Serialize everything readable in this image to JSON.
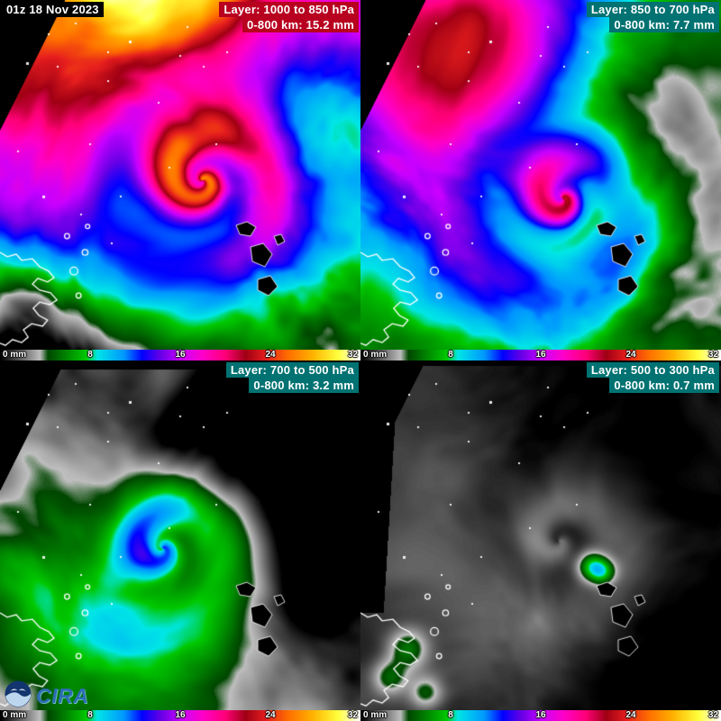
{
  "timestamp": "01z 18 Nov 2023",
  "panels": [
    {
      "layer_label": "Layer: 1000 to 850 hPa",
      "value_label": "0-800 km: 15.2 mm",
      "label_bg": "#b8001f"
    },
    {
      "layer_label": "Layer: 850 to 700 hPa",
      "value_label": "0-800 km: 7.7 mm",
      "label_bg": "#007272"
    },
    {
      "layer_label": "Layer: 700 to 500 hPa",
      "value_label": "0-800 km: 3.2 mm",
      "label_bg": "#007272"
    },
    {
      "layer_label": "Layer: 500 to 300 hPa",
      "value_label": "0-800 km: 0.7 mm",
      "label_bg": "#007272"
    }
  ],
  "colorbar": {
    "unit": "mm",
    "min": 0,
    "max": 32,
    "labels": [
      "0 mm",
      "8",
      "16",
      "24",
      "32"
    ]
  },
  "colormap": [
    {
      "v": 0,
      "c": "#000000"
    },
    {
      "v": 3.5,
      "c": "#bebebe"
    },
    {
      "v": 4.2,
      "c": "#004600"
    },
    {
      "v": 7.6,
      "c": "#00c800"
    },
    {
      "v": 8.6,
      "c": "#00e6e6"
    },
    {
      "v": 11,
      "c": "#0096ff"
    },
    {
      "v": 12.6,
      "c": "#0000ff"
    },
    {
      "v": 14.2,
      "c": "#6400e6"
    },
    {
      "v": 16,
      "c": "#c800ff"
    },
    {
      "v": 18,
      "c": "#ff00c8"
    },
    {
      "v": 20,
      "c": "#ff0078"
    },
    {
      "v": 21.8,
      "c": "#a00014"
    },
    {
      "v": 23.6,
      "c": "#e61e1e"
    },
    {
      "v": 25.6,
      "c": "#ff6e00"
    },
    {
      "v": 27.8,
      "c": "#ffb400"
    },
    {
      "v": 30,
      "c": "#ffff3c"
    },
    {
      "v": 32,
      "c": "#ffffff"
    }
  ],
  "logos": {
    "noaa_icon": "noaa-seagull-emblem",
    "cira_text": "CIRA"
  }
}
